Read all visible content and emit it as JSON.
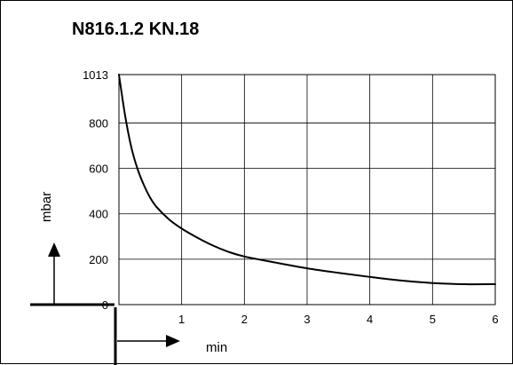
{
  "chart_data": {
    "type": "line",
    "title": "N816.1.2 KN.18",
    "xlabel": "min",
    "ylabel": "mbar",
    "xlim": [
      0,
      6
    ],
    "ylim": [
      0,
      1013
    ],
    "x_ticks": [
      1,
      2,
      3,
      4,
      5,
      6
    ],
    "x_tick_labels": [
      "1",
      "2",
      "3",
      "4",
      "5",
      "6"
    ],
    "y_ticks": [
      0,
      200,
      400,
      600,
      800,
      1013
    ],
    "y_tick_labels": [
      "0",
      "200",
      "400",
      "600",
      "800",
      "1013"
    ],
    "grid": true,
    "series": [
      {
        "color": "#000000",
        "x": [
          0,
          0.1,
          0.2,
          0.3,
          0.4,
          0.5,
          0.6,
          0.8,
          1.0,
          1.25,
          1.5,
          1.75,
          2.0,
          2.5,
          3.0,
          3.5,
          4.0,
          4.5,
          5.0,
          5.5,
          6.0
        ],
        "y": [
          1013,
          830,
          690,
          595,
          525,
          470,
          430,
          375,
          335,
          295,
          260,
          232,
          212,
          185,
          160,
          140,
          122,
          106,
          95,
          90,
          90
        ]
      }
    ]
  }
}
